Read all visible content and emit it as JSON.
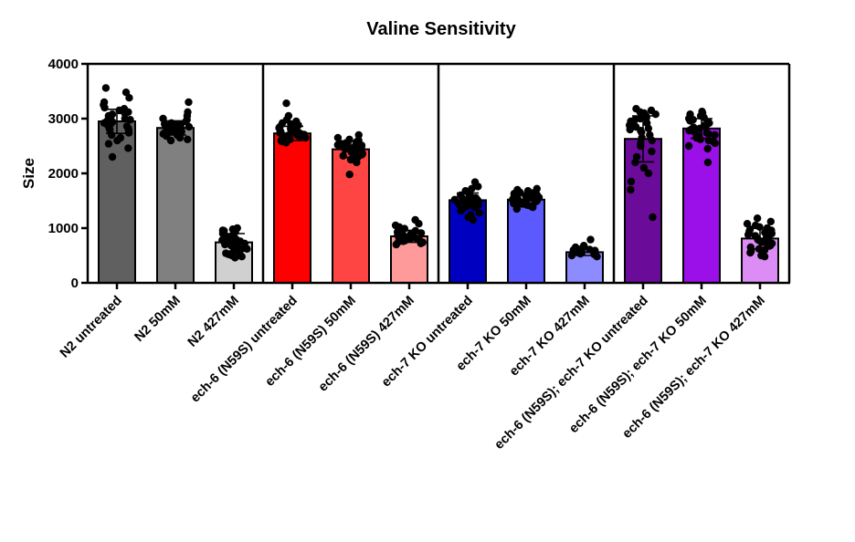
{
  "chart_data": {
    "type": "bar",
    "title": "Valine Sensitivity",
    "ylabel": "Size",
    "xlabel": "",
    "ylim": [
      0,
      4000
    ],
    "yticks": [
      "0",
      "1000",
      "2000",
      "3000",
      "4000"
    ],
    "grid": false,
    "legend": "none",
    "group_separators_after": [
      3,
      6,
      9
    ],
    "categories": [
      {
        "label": "N2 untreated",
        "value": 2950,
        "error": 220,
        "color": "#606060",
        "points": [
          3560,
          3480,
          3380,
          3300,
          3250,
          3200,
          3180,
          3150,
          3120,
          3100,
          3080,
          3050,
          3020,
          3000,
          2980,
          2960,
          2940,
          2920,
          2900,
          2880,
          2860,
          2840,
          2820,
          2800,
          2780,
          2740,
          2700,
          2650,
          2600,
          2540,
          2460,
          2300
        ]
      },
      {
        "label": "N2 50mM",
        "value": 2830,
        "error": 130,
        "color": "#808080",
        "points": [
          3300,
          3120,
          3050,
          3000,
          2980,
          2950,
          2920,
          2900,
          2890,
          2880,
          2870,
          2860,
          2850,
          2840,
          2830,
          2820,
          2810,
          2800,
          2790,
          2780,
          2770,
          2760,
          2750,
          2740,
          2720,
          2700,
          2680,
          2650,
          2620,
          2600
        ]
      },
      {
        "label": "N2 427mM",
        "value": 740,
        "error": 160,
        "color": "#d0d0d0",
        "points": [
          1000,
          980,
          960,
          950,
          930,
          900,
          880,
          860,
          840,
          820,
          800,
          780,
          760,
          750,
          740,
          730,
          720,
          700,
          680,
          660,
          640,
          620,
          600,
          580,
          560,
          540,
          520,
          500,
          480,
          460
        ]
      },
      {
        "label": "ech-6 (N59S) untreated",
        "value": 2730,
        "error": 130,
        "color": "#ff0000",
        "points": [
          3280,
          3050,
          2980,
          2950,
          2920,
          2900,
          2880,
          2850,
          2830,
          2820,
          2800,
          2790,
          2780,
          2760,
          2750,
          2740,
          2730,
          2720,
          2710,
          2700,
          2690,
          2680,
          2660,
          2650,
          2640,
          2620,
          2600,
          2580,
          2560
        ]
      },
      {
        "label": "ech-6 (N59S) 50mM",
        "value": 2440,
        "error": 150,
        "color": "#ff4444",
        "points": [
          2700,
          2650,
          2620,
          2600,
          2580,
          2560,
          2550,
          2540,
          2520,
          2510,
          2500,
          2490,
          2480,
          2470,
          2460,
          2450,
          2440,
          2430,
          2420,
          2400,
          2390,
          2380,
          2360,
          2340,
          2320,
          2300,
          2280,
          2250,
          2200,
          1980
        ]
      },
      {
        "label": "ech-6 (N59S)  427mM",
        "value": 850,
        "error": 110,
        "color": "#ff9a9a",
        "points": [
          1150,
          1080,
          1050,
          1020,
          990,
          970,
          950,
          930,
          910,
          900,
          890,
          880,
          870,
          860,
          850,
          840,
          830,
          820,
          810,
          800,
          790,
          780,
          770,
          760,
          750,
          740,
          720,
          700
        ]
      },
      {
        "label": "ech-7 KO untreated",
        "value": 1510,
        "error": 130,
        "color": "#0000c0",
        "points": [
          1840,
          1760,
          1720,
          1680,
          1650,
          1620,
          1600,
          1580,
          1560,
          1550,
          1540,
          1530,
          1520,
          1510,
          1500,
          1490,
          1480,
          1470,
          1460,
          1440,
          1420,
          1400,
          1380,
          1350,
          1320,
          1280,
          1240,
          1200,
          1150
        ]
      },
      {
        "label": "ech-7 KO 50mM",
        "value": 1520,
        "error": 90,
        "color": "#5a5aff",
        "points": [
          1720,
          1700,
          1680,
          1660,
          1650,
          1640,
          1630,
          1620,
          1610,
          1600,
          1590,
          1580,
          1570,
          1560,
          1550,
          1540,
          1530,
          1520,
          1510,
          1500,
          1490,
          1480,
          1470,
          1460,
          1450,
          1440,
          1420,
          1400,
          1380,
          1350
        ]
      },
      {
        "label": "ech-7 KO 427mM",
        "value": 560,
        "error": 60,
        "color": "#8c8cff",
        "points": [
          790,
          680,
          650,
          630,
          610,
          600,
          590,
          580,
          570,
          560,
          550,
          540,
          530,
          520,
          500,
          480
        ]
      },
      {
        "label": "ech-6 (N59S); ech-7 KO untreated",
        "value": 2630,
        "error": 420,
        "color": "#6a0b9a",
        "points": [
          3180,
          3150,
          3120,
          3100,
          3080,
          3050,
          3020,
          3000,
          2980,
          2950,
          2920,
          2900,
          2880,
          2850,
          2820,
          2800,
          2780,
          2750,
          2700,
          2650,
          2600,
          2550,
          2500,
          2400,
          2300,
          2200,
          2100,
          2000,
          1850,
          1700,
          1200
        ]
      },
      {
        "label": "ech-6 (N59S); ech-7 KO 50mM",
        "value": 2820,
        "error": 180,
        "color": "#9b10e8",
        "points": [
          3130,
          3100,
          3080,
          3050,
          3020,
          3000,
          2980,
          2960,
          2940,
          2920,
          2900,
          2880,
          2860,
          2840,
          2820,
          2800,
          2780,
          2760,
          2740,
          2720,
          2700,
          2680,
          2650,
          2620,
          2600,
          2580,
          2550,
          2500,
          2450,
          2200
        ]
      },
      {
        "label": "ech-6 (N59S); ech-7 KO 427mM",
        "value": 810,
        "error": 190,
        "color": "#dc8cf5",
        "points": [
          1180,
          1120,
          1080,
          1050,
          1020,
          1000,
          980,
          960,
          940,
          920,
          900,
          880,
          860,
          840,
          820,
          800,
          780,
          760,
          740,
          720,
          700,
          680,
          650,
          620,
          600,
          580,
          550,
          500,
          480
        ]
      }
    ]
  }
}
